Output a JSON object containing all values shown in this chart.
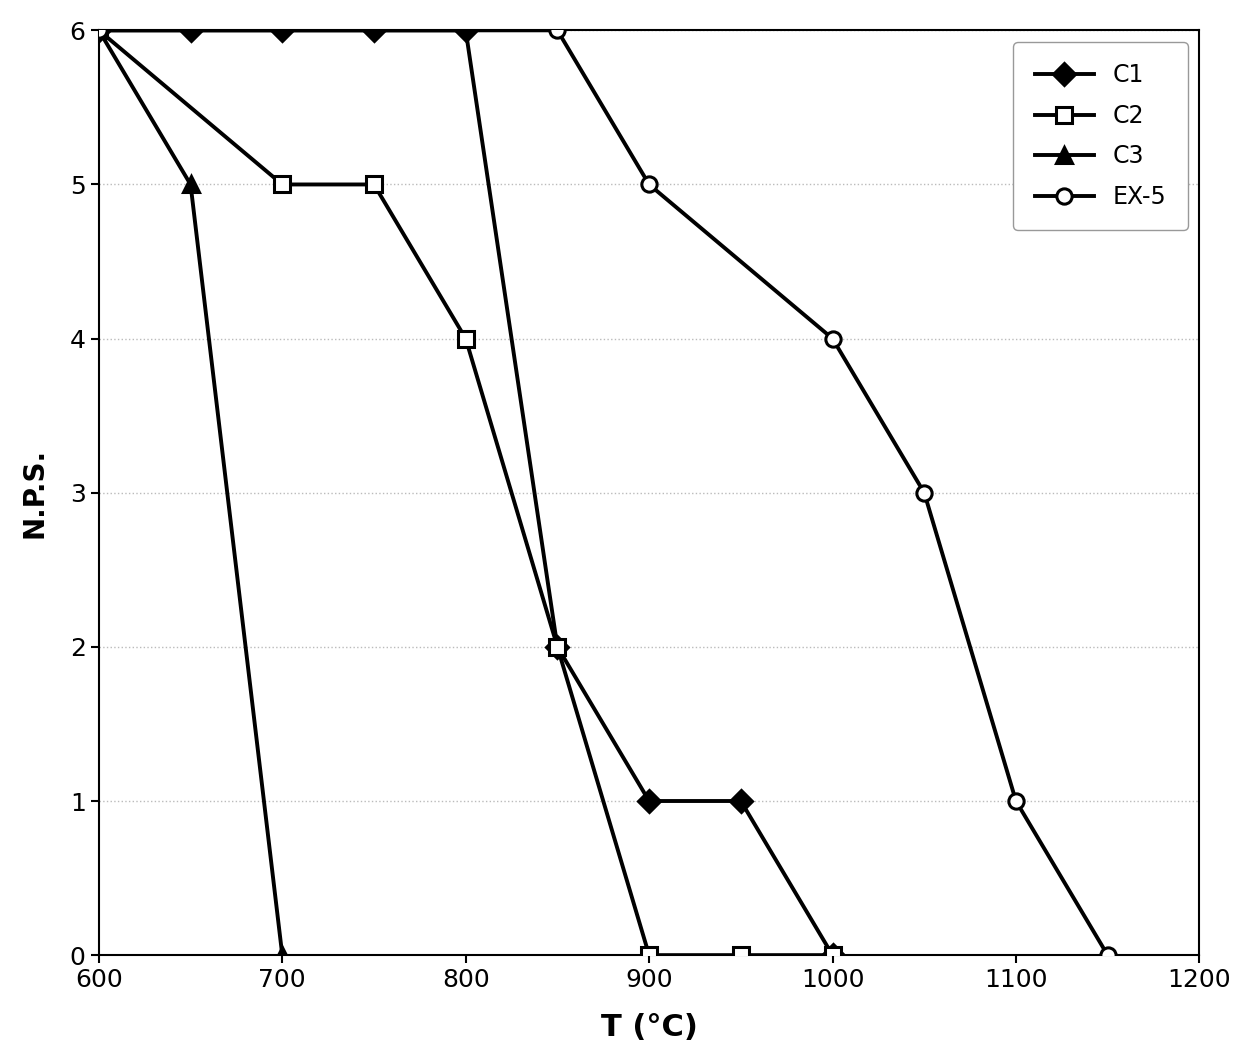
{
  "title": "",
  "xlabel": "T (°C)",
  "ylabel": "N.P.S.",
  "xlim": [
    600,
    1200
  ],
  "ylim": [
    0,
    6
  ],
  "xticks": [
    600,
    700,
    800,
    900,
    1000,
    1100,
    1200
  ],
  "yticks": [
    0,
    1,
    2,
    3,
    4,
    5,
    6
  ],
  "background_color": "#ffffff",
  "series": [
    {
      "label": "C1",
      "x": [
        600,
        650,
        700,
        750,
        800,
        850,
        900,
        950,
        1000
      ],
      "y": [
        6,
        6,
        6,
        6,
        6,
        2,
        1,
        1,
        0
      ],
      "marker": "D",
      "markerfacecolor": "#000000",
      "markeredgecolor": "#000000",
      "color": "#000000",
      "markersize": 11,
      "linewidth": 2.8
    },
    {
      "label": "C2",
      "x": [
        600,
        700,
        750,
        800,
        850,
        900,
        950,
        1000
      ],
      "y": [
        6,
        5,
        5,
        4,
        2,
        0,
        0,
        0
      ],
      "marker": "s",
      "markerfacecolor": "#ffffff",
      "markeredgecolor": "#000000",
      "color": "#000000",
      "markersize": 11,
      "linewidth": 2.8
    },
    {
      "label": "C3",
      "x": [
        600,
        650,
        700
      ],
      "y": [
        6,
        5,
        0
      ],
      "marker": "^",
      "markerfacecolor": "#000000",
      "markeredgecolor": "#000000",
      "color": "#000000",
      "markersize": 11,
      "linewidth": 2.8
    },
    {
      "label": "EX-5",
      "x": [
        600,
        850,
        900,
        1000,
        1050,
        1100,
        1150
      ],
      "y": [
        6,
        6,
        5,
        4,
        3,
        1,
        0
      ],
      "marker": "o",
      "markerfacecolor": "#ffffff",
      "markeredgecolor": "#000000",
      "color": "#000000",
      "markersize": 11,
      "linewidth": 2.8
    }
  ],
  "legend_loc": "upper right",
  "grid_color": "#bbbbbb",
  "grid_linestyle": ":",
  "grid_linewidth": 1.0,
  "xlabel_fontsize": 22,
  "ylabel_fontsize": 20,
  "tick_fontsize": 18,
  "legend_fontsize": 17
}
